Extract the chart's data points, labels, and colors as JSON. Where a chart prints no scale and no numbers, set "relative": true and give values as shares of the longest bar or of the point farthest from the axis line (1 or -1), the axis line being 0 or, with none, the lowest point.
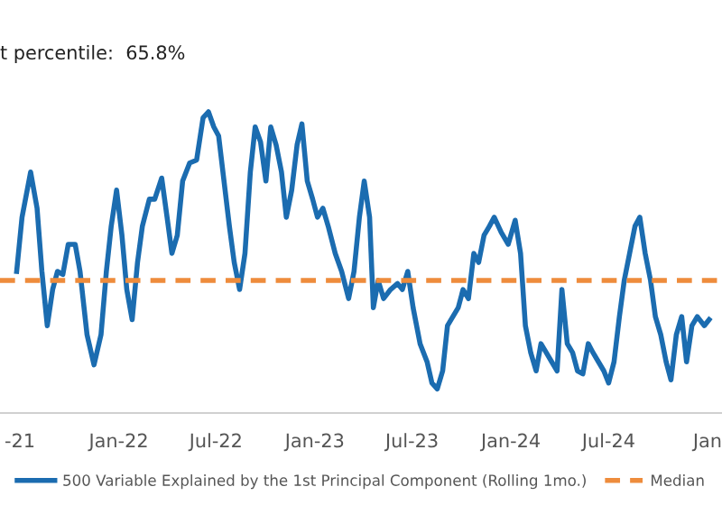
{
  "chart_data": {
    "type": "line",
    "title": "t percentile:  65.8%",
    "relative": true,
    "legend": "bottom",
    "xlim": [
      "2021-05-25",
      "2025-01-28"
    ],
    "xticks": [
      {
        "value": "2021-07-01",
        "label": "-21"
      },
      {
        "value": "2022-01-01",
        "label": "Jan-22"
      },
      {
        "value": "2022-07-01",
        "label": "Jul-22"
      },
      {
        "value": "2023-01-01",
        "label": "Jan-23"
      },
      {
        "value": "2023-07-01",
        "label": "Jul-23"
      },
      {
        "value": "2024-01-01",
        "label": "Jan-24"
      },
      {
        "value": "2024-07-01",
        "label": "Jul-24"
      },
      {
        "value": "2025-01-01",
        "label": "Jan"
      }
    ],
    "x": [
      "2021-06-25",
      "2021-07-05",
      "2021-07-21",
      "2021-08-02",
      "2021-08-11",
      "2021-08-21",
      "2021-08-31",
      "2021-09-09",
      "2021-09-19",
      "2021-09-29",
      "2021-10-12",
      "2021-10-21",
      "2021-11-03",
      "2021-11-16",
      "2021-11-29",
      "2021-12-09",
      "2021-12-18",
      "2021-12-28",
      "2022-01-07",
      "2022-01-16",
      "2022-01-26",
      "2022-02-05",
      "2022-02-14",
      "2022-02-27",
      "2022-03-09",
      "2022-03-22",
      "2022-04-01",
      "2022-04-10",
      "2022-04-20",
      "2022-04-30",
      "2022-05-13",
      "2022-05-26",
      "2022-06-07",
      "2022-06-17",
      "2022-06-27",
      "2022-07-06",
      "2022-07-16",
      "2022-07-26",
      "2022-08-04",
      "2022-08-14",
      "2022-08-24",
      "2022-09-03",
      "2022-09-12",
      "2022-09-22",
      "2022-10-02",
      "2022-10-11",
      "2022-10-21",
      "2022-10-31",
      "2022-11-09",
      "2022-11-19",
      "2022-11-29",
      "2022-12-08",
      "2022-12-18",
      "2022-12-28",
      "2023-01-06",
      "2023-01-16",
      "2023-01-26",
      "2023-02-08",
      "2023-02-20",
      "2023-03-05",
      "2023-03-15",
      "2023-03-25",
      "2023-04-03",
      "2023-04-13",
      "2023-04-20",
      "2023-04-29",
      "2023-05-09",
      "2023-05-22",
      "2023-06-04",
      "2023-06-13",
      "2023-06-23",
      "2023-07-03",
      "2023-07-16",
      "2023-07-29",
      "2023-08-07",
      "2023-08-17",
      "2023-08-27",
      "2023-09-05",
      "2023-09-15",
      "2023-09-25",
      "2023-10-04",
      "2023-10-14",
      "2023-10-24",
      "2023-11-02",
      "2023-11-12",
      "2023-11-22",
      "2023-12-01",
      "2023-12-14",
      "2023-12-27",
      "2024-01-09",
      "2024-01-19",
      "2024-01-28",
      "2024-02-07",
      "2024-02-17",
      "2024-02-26",
      "2024-03-07",
      "2024-03-17",
      "2024-03-27",
      "2024-04-05",
      "2024-04-15",
      "2024-04-25",
      "2024-05-04",
      "2024-05-14",
      "2024-05-24",
      "2024-06-02",
      "2024-06-12",
      "2024-06-22",
      "2024-07-01",
      "2024-07-11",
      "2024-07-21",
      "2024-07-30",
      "2024-08-09",
      "2024-08-19",
      "2024-08-28",
      "2024-09-07",
      "2024-09-17",
      "2024-09-26",
      "2024-10-06",
      "2024-10-16",
      "2024-10-25",
      "2024-11-04",
      "2024-11-14",
      "2024-11-23",
      "2024-12-03",
      "2024-12-13",
      "2024-12-26",
      "2025-01-04"
    ],
    "series": [
      {
        "name": "500 Variable Explained by the 1st Principal Component (Rolling 1mo.)",
        "color": "#1b6cb0",
        "values": [
          0.47,
          0.65,
          0.8,
          0.68,
          0.47,
          0.29,
          0.41,
          0.47,
          0.46,
          0.56,
          0.56,
          0.47,
          0.26,
          0.16,
          0.26,
          0.47,
          0.62,
          0.74,
          0.59,
          0.41,
          0.31,
          0.5,
          0.62,
          0.71,
          0.71,
          0.78,
          0.65,
          0.53,
          0.59,
          0.77,
          0.83,
          0.84,
          0.98,
          1.0,
          0.95,
          0.92,
          0.77,
          0.62,
          0.5,
          0.41,
          0.53,
          0.8,
          0.95,
          0.9,
          0.77,
          0.95,
          0.89,
          0.8,
          0.65,
          0.74,
          0.89,
          0.96,
          0.77,
          0.71,
          0.65,
          0.68,
          0.62,
          0.53,
          0.47,
          0.38,
          0.47,
          0.65,
          0.77,
          0.65,
          0.35,
          0.44,
          0.38,
          0.41,
          0.43,
          0.41,
          0.47,
          0.35,
          0.23,
          0.17,
          0.1,
          0.08,
          0.14,
          0.29,
          0.32,
          0.35,
          0.41,
          0.38,
          0.53,
          0.5,
          0.59,
          0.62,
          0.65,
          0.6,
          0.56,
          0.64,
          0.53,
          0.29,
          0.2,
          0.14,
          0.23,
          0.2,
          0.17,
          0.14,
          0.41,
          0.23,
          0.2,
          0.14,
          0.13,
          0.23,
          0.2,
          0.17,
          0.14,
          0.1,
          0.17,
          0.32,
          0.44,
          0.53,
          0.62,
          0.65,
          0.53,
          0.44,
          0.32,
          0.26,
          0.17,
          0.11,
          0.26,
          0.32,
          0.17,
          0.29,
          0.32,
          0.29,
          0.31
        ]
      }
    ],
    "ref_lines": [
      {
        "axis": "y",
        "value": 0.44,
        "label": "Median",
        "color": "#ee8c3c",
        "line_style": "dashed"
      }
    ]
  }
}
